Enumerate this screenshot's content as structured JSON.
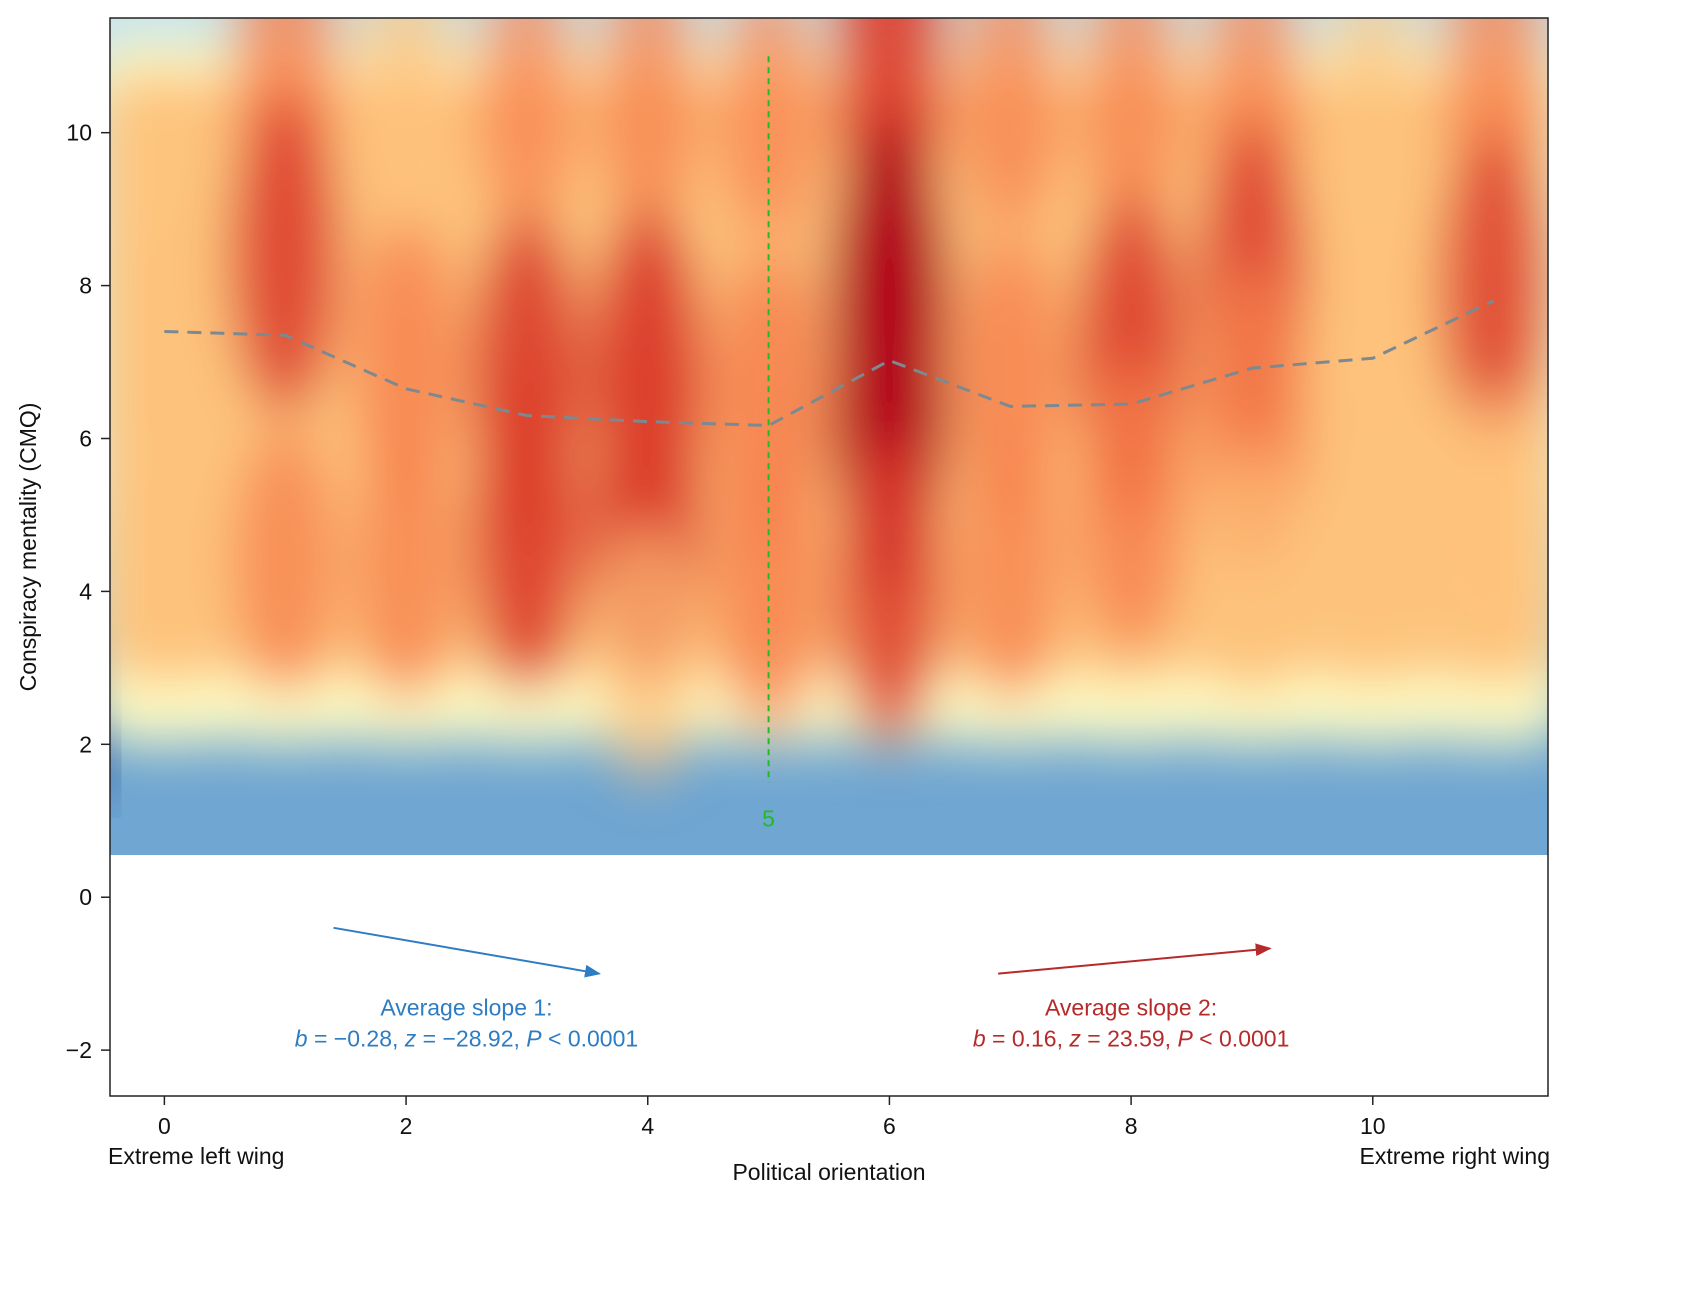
{
  "chart_data": {
    "type": "heatmap",
    "overlay": "line",
    "xlabel": "Political orientation",
    "ylabel": "Conspiracy mentality (CMQ)",
    "xlim": [
      -0.45,
      11.45
    ],
    "ylim": [
      -2.6,
      11.5
    ],
    "heatmap_y_range": [
      0.55,
      11.5
    ],
    "x_ticks": [
      0,
      2,
      4,
      6,
      8,
      10
    ],
    "y_ticks": [
      -2,
      0,
      2,
      4,
      6,
      8,
      10
    ],
    "x_tick_labels": [
      "0",
      "2",
      "4",
      "6",
      "8",
      "10"
    ],
    "y_tick_labels": [
      "−2",
      "0",
      "2",
      "4",
      "6",
      "8",
      "10"
    ],
    "x_end_labels": {
      "left": "Extreme left wing",
      "right": "Extreme right wing"
    },
    "colorscale": [
      "#2c4f9c",
      "#6fa6d2",
      "#c6e4ee",
      "#fefcc4",
      "#fdc17a",
      "#f67c4a",
      "#dc3d2c",
      "#b3001e"
    ],
    "mean_line": {
      "color": "#7d8990",
      "x": [
        0,
        1,
        2,
        3,
        4,
        5,
        6,
        7,
        8,
        9,
        10,
        11
      ],
      "y": [
        7.4,
        7.35,
        6.65,
        6.3,
        6.22,
        6.17,
        7.02,
        6.42,
        6.45,
        6.92,
        7.05,
        7.8
      ]
    },
    "density_columns": [
      {
        "x": 0,
        "peaks": [
          {
            "y": 7.3,
            "strength": 0.42
          },
          {
            "y": 4.5,
            "strength": 0.3
          }
        ]
      },
      {
        "x": 1,
        "peaks": [
          {
            "y": 10.8,
            "strength": 0.62
          },
          {
            "y": 8.4,
            "strength": 0.78
          },
          {
            "y": 4.4,
            "strength": 0.55
          }
        ]
      },
      {
        "x": 2,
        "peaks": [
          {
            "y": 10.6,
            "strength": 0.5
          },
          {
            "y": 7.0,
            "strength": 0.62
          },
          {
            "y": 4.3,
            "strength": 0.55
          }
        ]
      },
      {
        "x": 3,
        "peaks": [
          {
            "y": 10.5,
            "strength": 0.52
          },
          {
            "y": 6.8,
            "strength": 0.84
          },
          {
            "y": 4.8,
            "strength": 0.82
          }
        ]
      },
      {
        "x": 4,
        "peaks": [
          {
            "y": 10.5,
            "strength": 0.55
          },
          {
            "y": 6.8,
            "strength": 0.9
          },
          {
            "y": 5.0,
            "strength": 0.86
          },
          {
            "y": 3.2,
            "strength": 0.5
          }
        ]
      },
      {
        "x": 5,
        "peaks": [
          {
            "y": 10.3,
            "strength": 0.52
          },
          {
            "y": 6.5,
            "strength": 0.7
          },
          {
            "y": 4.0,
            "strength": 0.62
          }
        ]
      },
      {
        "x": 6,
        "peaks": [
          {
            "y": 10.7,
            "strength": 0.82
          },
          {
            "y": 7.8,
            "strength": 1.0
          },
          {
            "y": 6.3,
            "strength": 0.95
          },
          {
            "y": 4.0,
            "strength": 0.72
          }
        ]
      },
      {
        "x": 7,
        "peaks": [
          {
            "y": 10.5,
            "strength": 0.56
          },
          {
            "y": 6.8,
            "strength": 0.62
          },
          {
            "y": 4.3,
            "strength": 0.55
          }
        ]
      },
      {
        "x": 8,
        "peaks": [
          {
            "y": 10.5,
            "strength": 0.55
          },
          {
            "y": 7.1,
            "strength": 0.8
          },
          {
            "y": 5.1,
            "strength": 0.66
          }
        ]
      },
      {
        "x": 9,
        "peaks": [
          {
            "y": 10.5,
            "strength": 0.55
          },
          {
            "y": 8.1,
            "strength": 0.74
          },
          {
            "y": 6.3,
            "strength": 0.7
          },
          {
            "y": 4.2,
            "strength": 0.45
          }
        ]
      },
      {
        "x": 10,
        "peaks": [
          {
            "y": 10.5,
            "strength": 0.42
          },
          {
            "y": 7.5,
            "strength": 0.48
          },
          {
            "y": 5.0,
            "strength": 0.4
          }
        ]
      },
      {
        "x": 11,
        "peaks": [
          {
            "y": 10.8,
            "strength": 0.58
          },
          {
            "y": 8.0,
            "strength": 0.72
          },
          {
            "y": 5.0,
            "strength": 0.48
          }
        ]
      }
    ],
    "annotations": {
      "breakpoint": {
        "x": 5,
        "label": "5",
        "color": "#22bb22",
        "y_range": [
          1.5,
          11.0
        ]
      },
      "slope1": {
        "color": "#2e7cc3",
        "title": "Average slope 1:",
        "b_label": "b",
        "b_value": " = −0.28, ",
        "z_label": "z",
        "z_value": " = −28.92, ",
        "p_label": "P",
        "p_value": " < 0.0001",
        "arrow_from": [
          1.4,
          -0.4
        ],
        "arrow_to": [
          3.6,
          -1.0
        ]
      },
      "slope2": {
        "color": "#b62a2a",
        "title": "Average slope 2:",
        "b_label": "b",
        "b_value": " = 0.16, ",
        "z_label": "z",
        "z_value": " = 23.59, ",
        "p_label": "P",
        "p_value": " < 0.0001",
        "arrow_from": [
          6.9,
          -1.0
        ],
        "arrow_to": [
          9.15,
          -0.67
        ]
      }
    }
  }
}
